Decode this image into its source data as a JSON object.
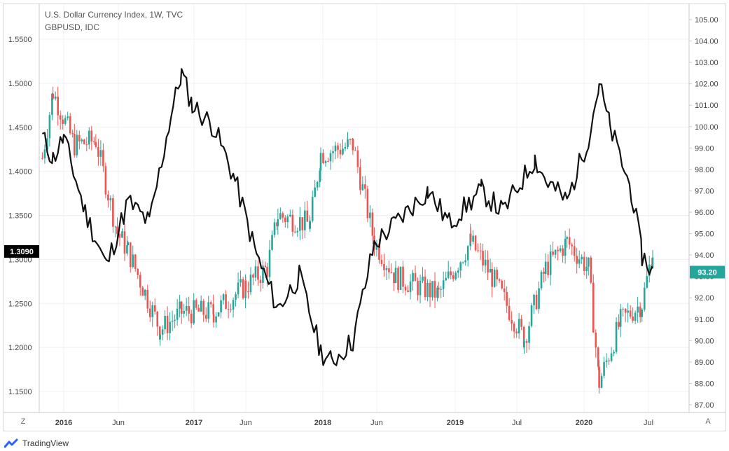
{
  "legend": {
    "title": "U.S. Dollar Currency Index, 1W, TVC",
    "subtitle": "GBPUSD, IDC"
  },
  "footer": {
    "brand": "TradingView"
  },
  "buttons": {
    "zone": "Z",
    "auto_scale": "A"
  },
  "colors": {
    "up": "#26a69a",
    "down": "#ef5350",
    "dxy_line": "#111111",
    "grid": "#eef0f3",
    "last_price_bg": "#000000",
    "dxy_last_bg": "#26a69a"
  },
  "chart_data": {
    "type": "candlestick",
    "x_labels": [
      "2016",
      "Jun",
      "2017",
      "Jun",
      "2018",
      "Jun",
      "2019",
      "Jul",
      "2020",
      "Jul"
    ],
    "left_axis": {
      "series": "GBPUSD",
      "ticks": [
        "1.5500",
        "1.5000",
        "1.4500",
        "1.4000",
        "1.3500",
        "1.3000",
        "1.2500",
        "1.2000",
        "1.1500"
      ],
      "last_value": "1.3090"
    },
    "right_axis": {
      "series": "U.S. Dollar Currency Index",
      "ticks": [
        "105.00",
        "104.00",
        "103.00",
        "102.00",
        "101.00",
        "100.00",
        "99.00",
        "98.00",
        "97.00",
        "96.00",
        "95.00",
        "94.00",
        "93.00",
        "92.00",
        "91.00",
        "90.00",
        "89.00",
        "88.00",
        "87.00"
      ],
      "last_value": "93.20"
    },
    "gbpusd_weekly_close_approx": [
      [
        "2015-11",
        1.415
      ],
      [
        "2015-12",
        1.49
      ],
      [
        "2016-02",
        1.43
      ],
      [
        "2016-04",
        1.435
      ],
      [
        "2016-06",
        1.33
      ],
      [
        "2016-07",
        1.31
      ],
      [
        "2016-10",
        1.22
      ],
      [
        "2016-12",
        1.24
      ],
      [
        "2017-03",
        1.24
      ],
      [
        "2017-06",
        1.27
      ],
      [
        "2017-08",
        1.29
      ],
      [
        "2017-09",
        1.35
      ],
      [
        "2017-12",
        1.34
      ],
      [
        "2018-01",
        1.42
      ],
      [
        "2018-04",
        1.43
      ],
      [
        "2018-06",
        1.32
      ],
      [
        "2018-08",
        1.28
      ],
      [
        "2018-12",
        1.26
      ],
      [
        "2019-03",
        1.32
      ],
      [
        "2019-05",
        1.28
      ],
      [
        "2019-08",
        1.21
      ],
      [
        "2019-10",
        1.29
      ],
      [
        "2019-12",
        1.32
      ],
      [
        "2020-02",
        1.29
      ],
      [
        "2020-03",
        1.16
      ],
      [
        "2020-05",
        1.23
      ],
      [
        "2020-07",
        1.25
      ],
      [
        "2020-08",
        1.309
      ]
    ],
    "dxy_weekly_close_approx": [
      [
        "2015-11",
        99.5
      ],
      [
        "2015-12",
        98.5
      ],
      [
        "2016-01",
        99.5
      ],
      [
        "2016-03",
        96.0
      ],
      [
        "2016-05",
        93.5
      ],
      [
        "2016-07",
        96.5
      ],
      [
        "2016-09",
        95.5
      ],
      [
        "2016-11",
        100.5
      ],
      [
        "2016-12",
        102.5
      ],
      [
        "2017-01",
        101.0
      ],
      [
        "2017-03",
        100.0
      ],
      [
        "2017-05",
        97.5
      ],
      [
        "2017-07",
        94.0
      ],
      [
        "2017-09",
        91.5
      ],
      [
        "2017-11",
        93.0
      ],
      [
        "2018-01",
        89.5
      ],
      [
        "2018-02",
        89.0
      ],
      [
        "2018-04",
        90.0
      ],
      [
        "2018-06",
        94.5
      ],
      [
        "2018-08",
        95.5
      ],
      [
        "2018-11",
        97.0
      ],
      [
        "2019-01",
        95.5
      ],
      [
        "2019-04",
        97.0
      ],
      [
        "2019-06",
        96.0
      ],
      [
        "2019-09",
        98.5
      ],
      [
        "2019-10",
        97.5
      ],
      [
        "2019-12",
        96.5
      ],
      [
        "2020-02",
        99.5
      ],
      [
        "2020-03",
        102.0
      ],
      [
        "2020-04",
        100.0
      ],
      [
        "2020-06",
        97.0
      ],
      [
        "2020-07",
        94.0
      ],
      [
        "2020-08",
        93.2
      ]
    ]
  }
}
